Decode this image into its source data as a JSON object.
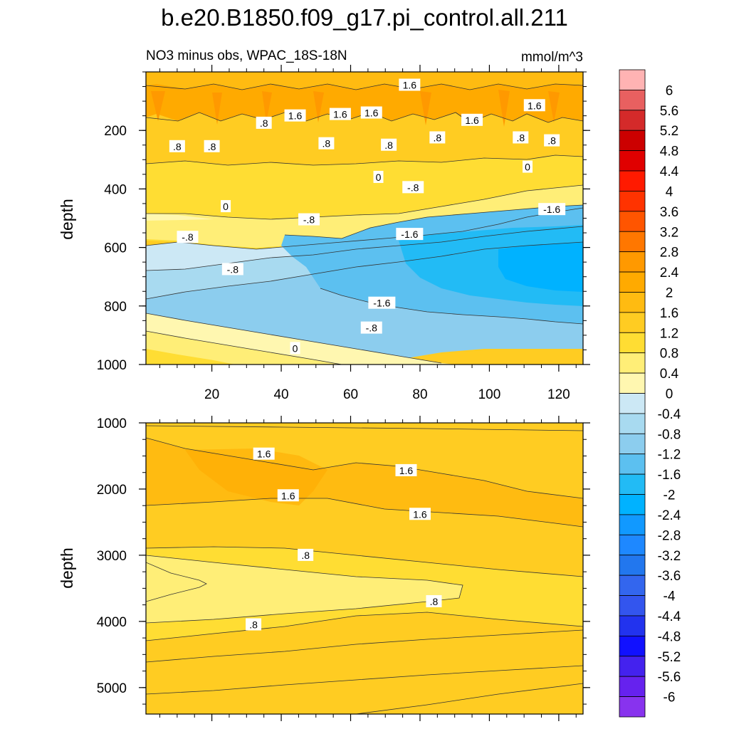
{
  "title": "b.e20.B1850.f09_g17.pi_control.all.211",
  "subtitle_left": "NO3 minus obs, WPAC_18S-18N",
  "subtitle_right": "mmol/m^3",
  "chart_data": [
    {
      "type": "contour",
      "panel": "upper",
      "xlabel": "",
      "ylabel": "depth",
      "xlim": [
        1,
        127
      ],
      "ylim": [
        1000,
        0
      ],
      "xticks": [
        20,
        40,
        60,
        80,
        100,
        120
      ],
      "xtick_labels": [
        "20",
        "40",
        "60",
        "80",
        "100",
        "120"
      ],
      "yticks": [
        200,
        400,
        600,
        800,
        1000
      ],
      "ytick_labels": [
        "200",
        "400",
        "600",
        "800",
        "1000"
      ],
      "contour_labels": [
        {
          "text": "1.6",
          "x": 77,
          "y": 45
        },
        {
          "text": ".8",
          "x": 35,
          "y": 175
        },
        {
          "text": "1.6",
          "x": 44,
          "y": 150
        },
        {
          "text": "1.6",
          "x": 57,
          "y": 145
        },
        {
          "text": "1.6",
          "x": 66,
          "y": 140
        },
        {
          "text": "1.6",
          "x": 95,
          "y": 165
        },
        {
          "text": "1.6",
          "x": 113,
          "y": 115
        },
        {
          "text": ".8",
          "x": 10,
          "y": 255
        },
        {
          "text": ".8",
          "x": 20,
          "y": 255
        },
        {
          "text": ".8",
          "x": 53,
          "y": 245
        },
        {
          "text": ".8",
          "x": 71,
          "y": 250
        },
        {
          "text": ".8",
          "x": 85,
          "y": 225
        },
        {
          "text": ".8",
          "x": 109,
          "y": 225
        },
        {
          "text": ".8",
          "x": 118,
          "y": 235
        },
        {
          "text": "0",
          "x": 68,
          "y": 360
        },
        {
          "text": "0",
          "x": 111,
          "y": 325
        },
        {
          "text": "-.8",
          "x": 78,
          "y": 395
        },
        {
          "text": "0",
          "x": 24,
          "y": 460
        },
        {
          "text": "-.8",
          "x": 48,
          "y": 505
        },
        {
          "text": "-1.6",
          "x": 118,
          "y": 470
        },
        {
          "text": "-1.6",
          "x": 77,
          "y": 555
        },
        {
          "text": "-.8",
          "x": 13,
          "y": 565
        },
        {
          "text": "-.8",
          "x": 26,
          "y": 675
        },
        {
          "text": "-1.6",
          "x": 69,
          "y": 790
        },
        {
          "text": "-.8",
          "x": 66,
          "y": 875
        },
        {
          "text": "0",
          "x": 44,
          "y": 945
        }
      ]
    },
    {
      "type": "contour",
      "panel": "lower",
      "xlabel": "",
      "ylabel": "depth",
      "xlim": [
        1,
        127
      ],
      "ylim": [
        5400,
        1000
      ],
      "yticks": [
        1000,
        2000,
        3000,
        4000,
        5000
      ],
      "ytick_labels": [
        "1000",
        "2000",
        "3000",
        "4000",
        "5000"
      ],
      "contour_labels": [
        {
          "text": "1.6",
          "x": 35,
          "y": 1470
        },
        {
          "text": "1.6",
          "x": 76,
          "y": 1720
        },
        {
          "text": "1.6",
          "x": 42,
          "y": 2100
        },
        {
          "text": "1.6",
          "x": 80,
          "y": 2380
        },
        {
          "text": ".8",
          "x": 47,
          "y": 3000
        },
        {
          "text": ".8",
          "x": 84,
          "y": 3700
        },
        {
          "text": ".8",
          "x": 32,
          "y": 4050
        }
      ]
    }
  ],
  "colorbar": {
    "labels": [
      "6",
      "5.6",
      "5.2",
      "4.8",
      "4.4",
      "4",
      "3.6",
      "3.2",
      "2.8",
      "2.4",
      "2",
      "1.6",
      "1.2",
      "0.8",
      "0.4",
      "0",
      "-0.4",
      "-0.8",
      "-1.2",
      "-1.6",
      "-2",
      "-2.4",
      "-2.8",
      "-3.2",
      "-3.6",
      "-4",
      "-4.4",
      "-4.8",
      "-5.2",
      "-5.6",
      "-6"
    ],
    "colors": [
      "#FFB3B3",
      "#E86060",
      "#D42A2A",
      "#CC0000",
      "#E00000",
      "#FF1A00",
      "#FF3300",
      "#FF5500",
      "#FF7700",
      "#FF9900",
      "#FFAA00",
      "#FFBB11",
      "#FFCC22",
      "#FFDD33",
      "#FFEE77",
      "#FFF7B0",
      "#CCE8F5",
      "#A8DAF0",
      "#8CCDEE",
      "#5CC0F0",
      "#22BBF5",
      "#00B2FF",
      "#1199FF",
      "#1E88FF",
      "#2277EE",
      "#3366EE",
      "#3355EE",
      "#2233EE",
      "#1111FF",
      "#4422EE",
      "#6622EE",
      "#8833EE"
    ]
  }
}
